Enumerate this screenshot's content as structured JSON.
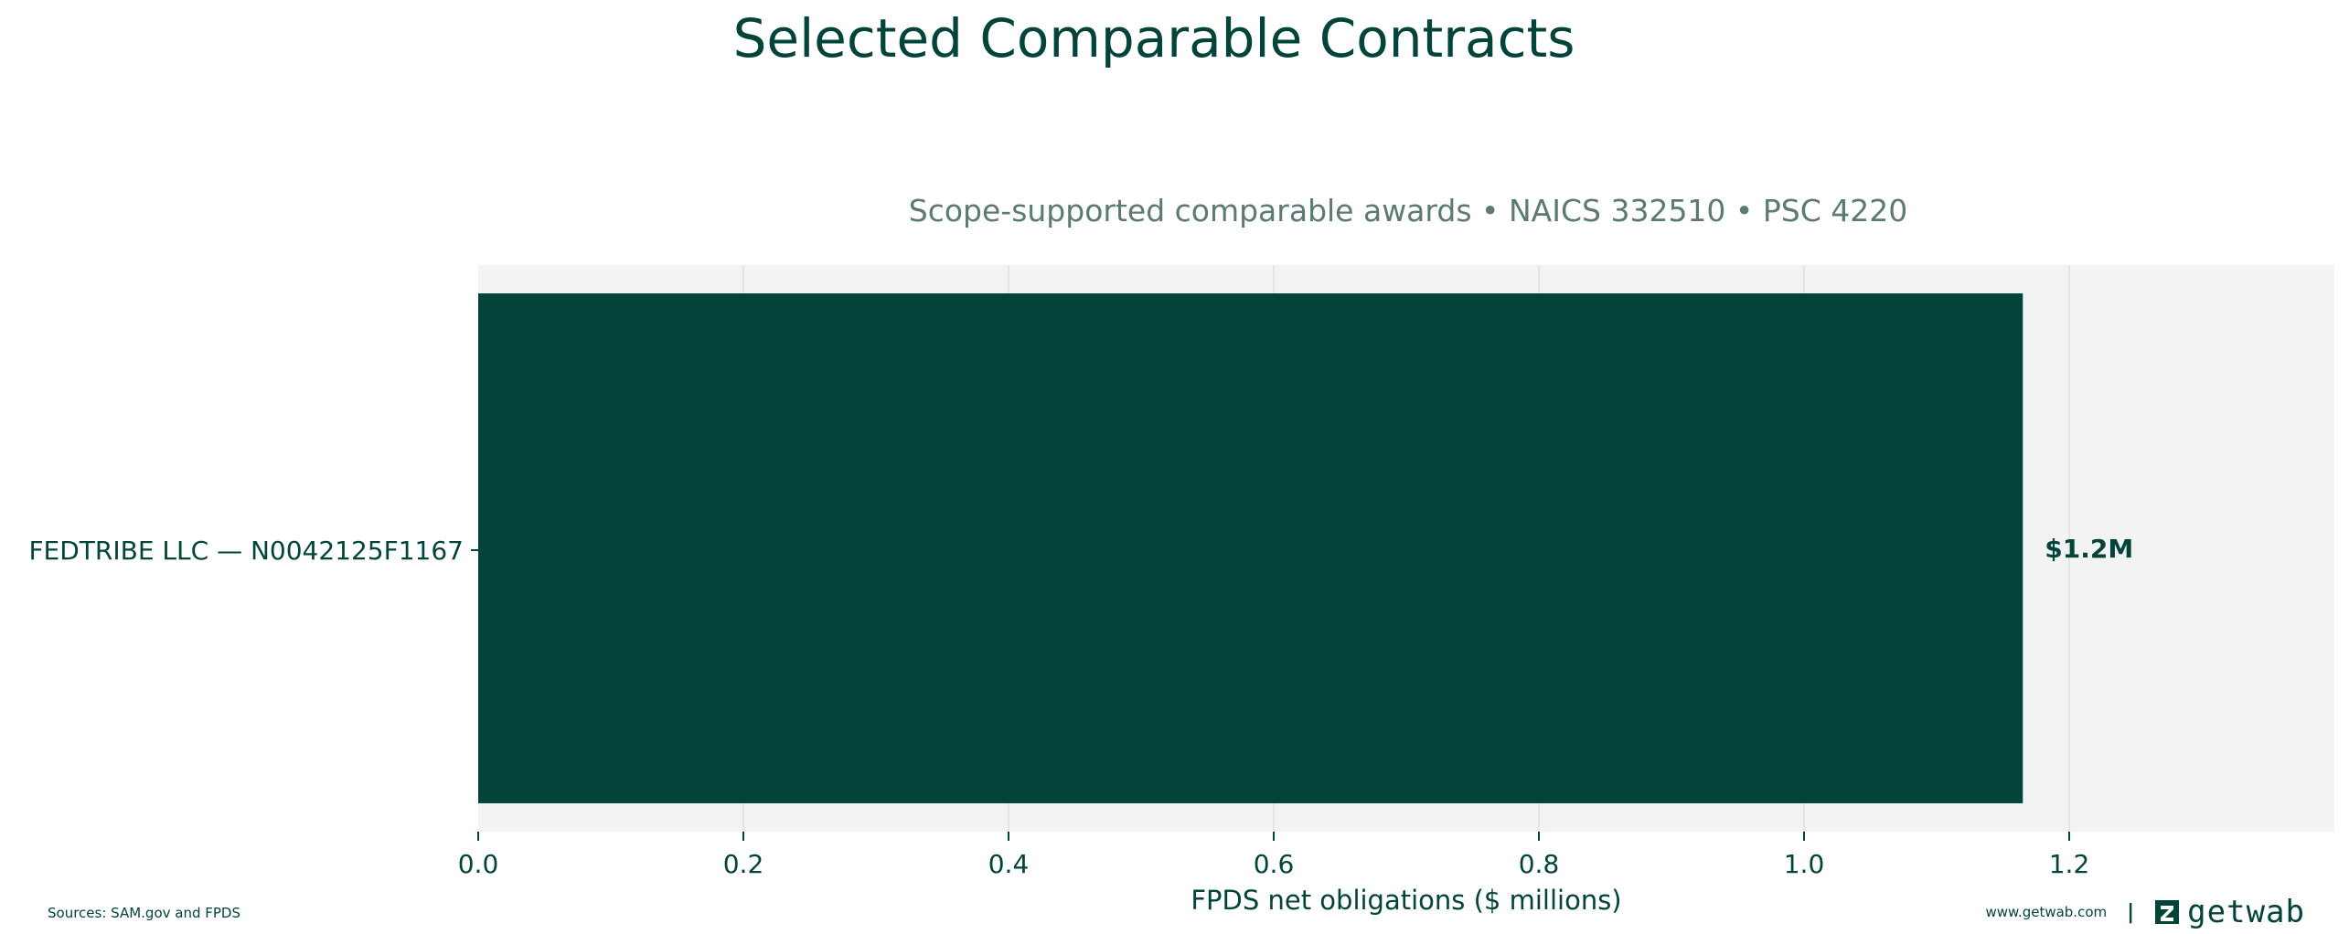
{
  "title": "Selected Comparable Contracts",
  "subtitle": "Scope-supported comparable awards • NAICS 332510 • PSC 4220",
  "colors": {
    "bar": "#02433a",
    "plot_bg": "#f2f3f2",
    "title": "#02433a",
    "subtitle": "#5c7a73",
    "grid": "#dfe2e0"
  },
  "chart_data": {
    "type": "bar",
    "orientation": "horizontal",
    "categories": [
      "FEDTRIBE LLC — N0042125F1167"
    ],
    "values": [
      1.165
    ],
    "data_labels": [
      "$1.2M"
    ],
    "xlabel": "FPDS net obligations ($ millions)",
    "ylabel": "",
    "xlim": [
      0,
      1.4
    ],
    "xticks": [
      "0.0",
      "0.2",
      "0.4",
      "0.6",
      "0.8",
      "1.0",
      "1.2"
    ],
    "xtick_values": [
      0,
      0.2,
      0.4,
      0.6,
      0.8,
      1.0,
      1.2
    ],
    "grid": "vertical"
  },
  "footer": {
    "sources": "Sources: SAM.gov and FPDS",
    "website": "www.getwab.com",
    "separator": "|",
    "brand": "getwab",
    "logo_icon": "getwab-logo-icon"
  }
}
